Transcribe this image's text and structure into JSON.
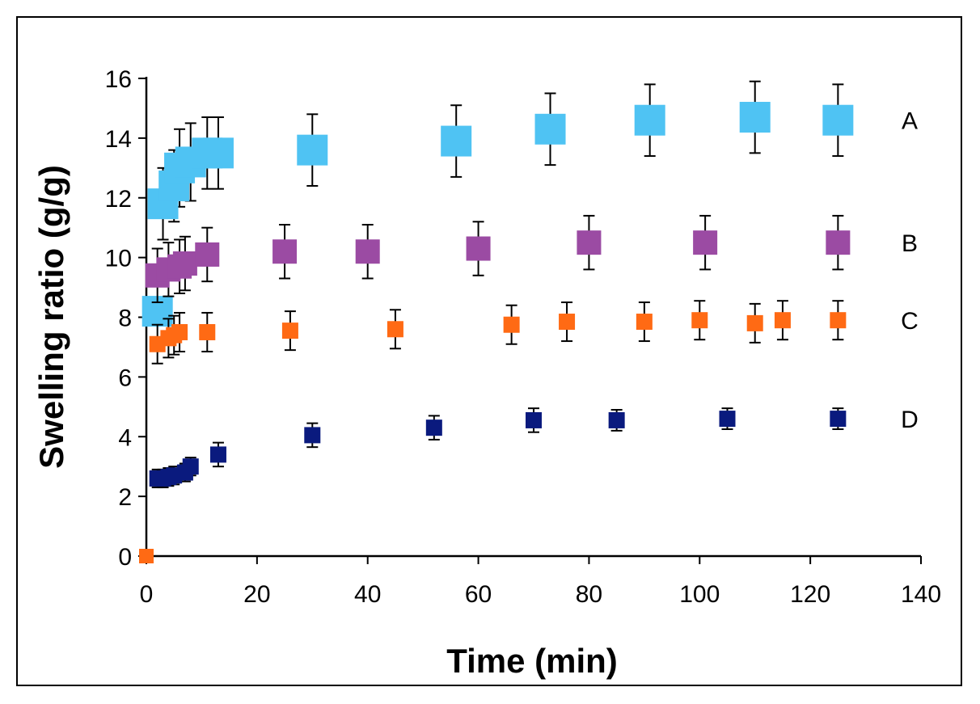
{
  "chart_data": {
    "type": "scatter",
    "title": "",
    "xlabel": "Time (min)",
    "ylabel": "Swelling ratio (g/g)",
    "xlim": [
      0,
      140
    ],
    "ylim": [
      0,
      16
    ],
    "xticks": [
      0,
      20,
      40,
      60,
      80,
      100,
      120,
      140
    ],
    "yticks": [
      0,
      2,
      4,
      6,
      8,
      10,
      12,
      14,
      16
    ],
    "grid": false,
    "legend": "none",
    "series": [
      {
        "name": "A",
        "color": "#4fc3f3",
        "marker": "square-large",
        "points": [
          [
            0,
            0
          ],
          [
            2,
            8.2
          ],
          [
            3,
            11.8
          ],
          [
            5,
            12.4
          ],
          [
            6,
            13.0
          ],
          [
            8,
            13.2
          ],
          [
            11,
            13.5
          ],
          [
            13,
            13.5
          ],
          [
            30,
            13.6
          ],
          [
            56,
            13.9
          ],
          [
            73,
            14.3
          ],
          [
            91,
            14.6
          ],
          [
            110,
            14.7
          ],
          [
            125,
            14.6
          ]
        ],
        "errors": [
          0,
          0,
          1.2,
          1.2,
          1.3,
          1.3,
          1.2,
          1.2,
          1.2,
          1.2,
          1.2,
          1.2,
          1.2,
          1.2
        ]
      },
      {
        "name": "B",
        "color": "#9b4ba3",
        "marker": "square-medium",
        "points": [
          [
            0,
            0
          ],
          [
            2,
            9.4
          ],
          [
            4,
            9.6
          ],
          [
            6,
            9.7
          ],
          [
            7,
            9.8
          ],
          [
            11,
            10.1
          ],
          [
            25,
            10.2
          ],
          [
            40,
            10.2
          ],
          [
            60,
            10.3
          ],
          [
            80,
            10.5
          ],
          [
            101,
            10.5
          ],
          [
            125,
            10.5
          ]
        ],
        "errors": [
          0,
          0.9,
          0.9,
          0.9,
          0.9,
          0.9,
          0.9,
          0.9,
          0.9,
          0.9,
          0.9,
          0.9
        ]
      },
      {
        "name": "C",
        "color": "#ff6a14",
        "marker": "square-small",
        "points": [
          [
            0,
            0
          ],
          [
            2,
            7.1
          ],
          [
            4,
            7.3
          ],
          [
            5,
            7.4
          ],
          [
            6,
            7.5
          ],
          [
            11,
            7.5
          ],
          [
            26,
            7.55
          ],
          [
            45,
            7.6
          ],
          [
            66,
            7.75
          ],
          [
            76,
            7.85
          ],
          [
            90,
            7.85
          ],
          [
            100,
            7.9
          ],
          [
            110,
            7.8
          ],
          [
            115,
            7.9
          ],
          [
            125,
            7.9
          ]
        ],
        "errors": [
          0,
          0.65,
          0.65,
          0.65,
          0.65,
          0.65,
          0.65,
          0.65,
          0.65,
          0.65,
          0.65,
          0.65,
          0.65,
          0.65,
          0.65
        ]
      },
      {
        "name": "D",
        "color": "#0a1a7e",
        "marker": "square-small",
        "points": [
          [
            0,
            0
          ],
          [
            2,
            2.6
          ],
          [
            3,
            2.6
          ],
          [
            4,
            2.65
          ],
          [
            5,
            2.7
          ],
          [
            7,
            2.8
          ],
          [
            8,
            3.0
          ],
          [
            13,
            3.4
          ],
          [
            30,
            4.05
          ],
          [
            52,
            4.3
          ],
          [
            70,
            4.55
          ],
          [
            85,
            4.55
          ],
          [
            105,
            4.6
          ],
          [
            125,
            4.6
          ]
        ],
        "errors": [
          0,
          0.3,
          0.3,
          0.3,
          0.3,
          0.3,
          0.3,
          0.4,
          0.4,
          0.4,
          0.4,
          0.35,
          0.35,
          0.35
        ]
      }
    ]
  }
}
